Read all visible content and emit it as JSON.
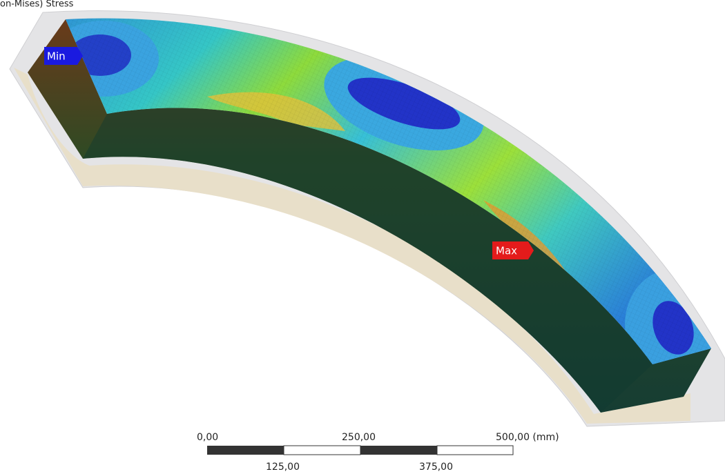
{
  "header": {
    "title": "on-Mises) Stress"
  },
  "probes": {
    "min": "Min",
    "max": "Max"
  },
  "scale_bar": {
    "top_labels": [
      "0,00",
      "250,00",
      "500,00 (mm)"
    ],
    "bottom_labels": [
      "125,00",
      "375,00"
    ]
  }
}
